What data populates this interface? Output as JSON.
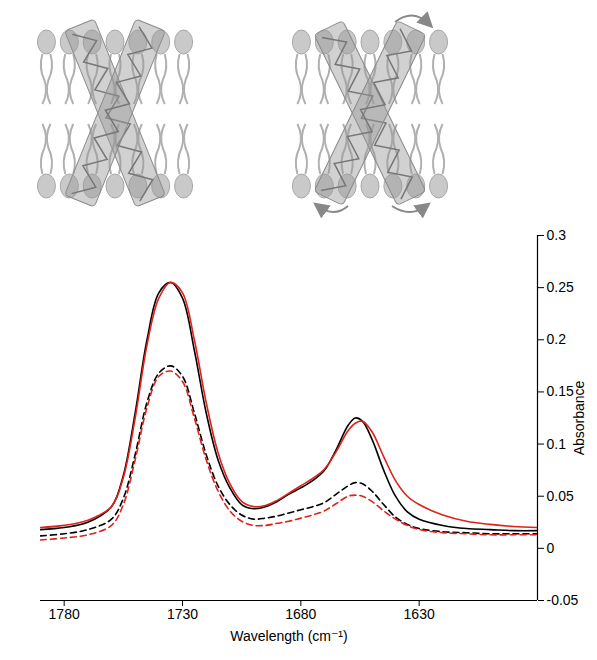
{
  "chart_data": {
    "type": "line",
    "x_label": "Wavelength (cm⁻¹)",
    "y_label": "Absorbance",
    "xlim": [
      1790,
      1580
    ],
    "xticks": [
      1780,
      1730,
      1680,
      1630
    ],
    "ylim": [
      -0.05,
      0.3
    ],
    "yticks": [
      -0.05,
      0,
      0.05,
      0.1,
      0.15,
      0.2,
      0.25,
      0.3
    ],
    "grid": false,
    "x": [
      1790,
      1780,
      1770,
      1760,
      1755,
      1750,
      1745,
      1740,
      1735,
      1730,
      1725,
      1720,
      1715,
      1710,
      1705,
      1700,
      1695,
      1690,
      1685,
      1680,
      1675,
      1670,
      1665,
      1660,
      1657,
      1654,
      1650,
      1645,
      1640,
      1635,
      1630,
      1620,
      1610,
      1600,
      1590,
      1580
    ],
    "series": [
      {
        "color": "#000000",
        "line_style": "solid",
        "values": [
          0.018,
          0.02,
          0.025,
          0.04,
          0.07,
          0.13,
          0.2,
          0.245,
          0.255,
          0.24,
          0.19,
          0.13,
          0.085,
          0.058,
          0.042,
          0.038,
          0.04,
          0.045,
          0.052,
          0.058,
          0.065,
          0.075,
          0.095,
          0.118,
          0.125,
          0.122,
          0.105,
          0.075,
          0.05,
          0.035,
          0.028,
          0.022,
          0.019,
          0.018,
          0.017,
          0.017
        ]
      },
      {
        "color": "#e0201b",
        "line_style": "solid",
        "values": [
          0.02,
          0.022,
          0.027,
          0.04,
          0.068,
          0.125,
          0.195,
          0.24,
          0.255,
          0.245,
          0.2,
          0.14,
          0.092,
          0.062,
          0.045,
          0.04,
          0.041,
          0.046,
          0.053,
          0.06,
          0.067,
          0.076,
          0.093,
          0.113,
          0.12,
          0.122,
          0.112,
          0.088,
          0.065,
          0.05,
          0.042,
          0.032,
          0.026,
          0.023,
          0.021,
          0.02
        ]
      },
      {
        "color": "#000000",
        "line_style": "dashed",
        "values": [
          0.012,
          0.014,
          0.018,
          0.028,
          0.048,
          0.09,
          0.14,
          0.168,
          0.175,
          0.165,
          0.13,
          0.09,
          0.06,
          0.042,
          0.032,
          0.028,
          0.029,
          0.031,
          0.034,
          0.037,
          0.04,
          0.044,
          0.052,
          0.06,
          0.063,
          0.062,
          0.055,
          0.042,
          0.03,
          0.023,
          0.019,
          0.016,
          0.015,
          0.014,
          0.014,
          0.014
        ]
      },
      {
        "color": "#e0201b",
        "line_style": "dashed",
        "values": [
          0.008,
          0.01,
          0.013,
          0.022,
          0.042,
          0.085,
          0.135,
          0.165,
          0.17,
          0.16,
          0.125,
          0.085,
          0.055,
          0.036,
          0.026,
          0.022,
          0.022,
          0.024,
          0.026,
          0.029,
          0.032,
          0.036,
          0.043,
          0.05,
          0.051,
          0.05,
          0.045,
          0.036,
          0.028,
          0.022,
          0.018,
          0.015,
          0.014,
          0.013,
          0.013,
          0.013
        ]
      }
    ]
  }
}
